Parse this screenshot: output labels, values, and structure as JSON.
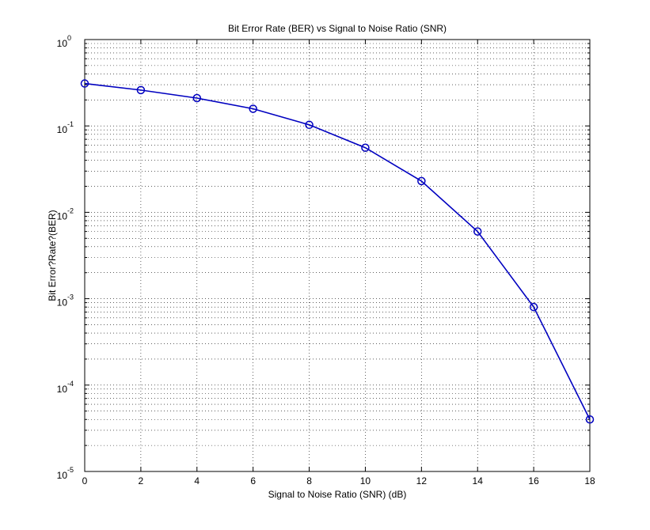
{
  "chart_data": {
    "type": "line",
    "title": "Bit Error Rate (BER) vs Signal to Noise Ratio (SNR)",
    "xlabel": "Signal to Noise Ratio (SNR) (dB)",
    "ylabel": "Bit Error?Rate?(BER)",
    "x": [
      0,
      2,
      4,
      6,
      8,
      10,
      12,
      14,
      16,
      18
    ],
    "series": [
      {
        "values": [
          0.31,
          0.26,
          0.21,
          0.158,
          0.103,
          0.056,
          0.023,
          0.006,
          0.0008,
          4e-05
        ],
        "color": "#0000c0",
        "marker": "circle"
      }
    ],
    "xlim": [
      0,
      18
    ],
    "ylim": [
      1e-05,
      1
    ],
    "yscale": "log",
    "grid": true,
    "x_ticks": [
      "0",
      "2",
      "4",
      "6",
      "8",
      "10",
      "12",
      "14",
      "16",
      "18"
    ],
    "y_ticks": [
      {
        "base": "10",
        "exp": "0"
      },
      {
        "base": "10",
        "exp": "-1"
      },
      {
        "base": "10",
        "exp": "-2"
      },
      {
        "base": "10",
        "exp": "-3"
      },
      {
        "base": "10",
        "exp": "-4"
      },
      {
        "base": "10",
        "exp": "-5"
      }
    ]
  }
}
